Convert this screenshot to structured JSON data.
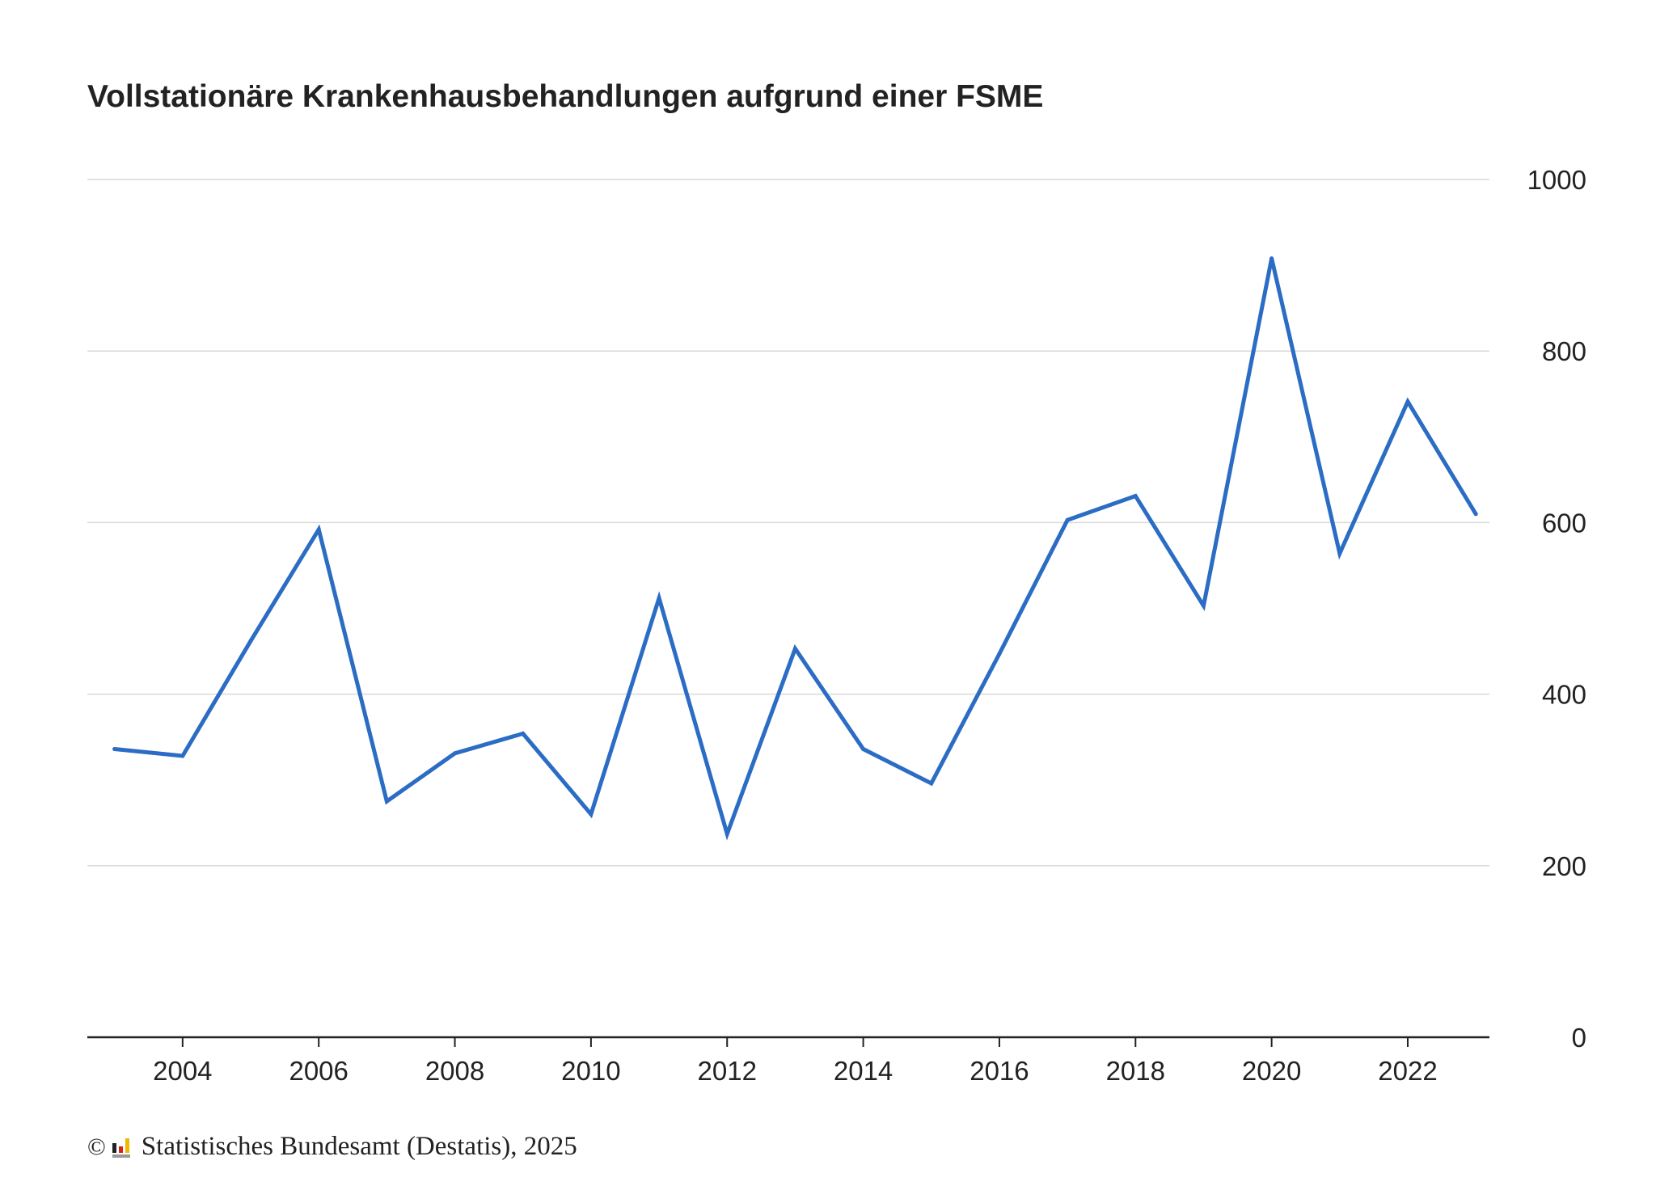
{
  "title": "Vollstationäre Krankenhausbehandlungen aufgrund einer FSME",
  "source": {
    "copyright": "©",
    "logo_icon": "destatis-logo-icon",
    "text": "Statistisches Bundesamt (Destatis), 2025"
  },
  "colors": {
    "line": "#2b6cc4",
    "grid": "#d9d9d9",
    "axis": "#222222",
    "text": "#222222",
    "logo_black": "#222222",
    "logo_red": "#d42020",
    "logo_gold": "#f2b705",
    "logo_grey": "#9a9a9a"
  },
  "chart_data": {
    "type": "line",
    "title": "Vollstationäre Krankenhausbehandlungen aufgrund einer FSME",
    "xlabel": "",
    "ylabel": "",
    "x": [
      2003,
      2004,
      2005,
      2006,
      2007,
      2008,
      2009,
      2010,
      2011,
      2012,
      2013,
      2014,
      2015,
      2016,
      2017,
      2018,
      2019,
      2020,
      2021,
      2022,
      2023
    ],
    "series": [
      {
        "values": [
          336,
          328,
          462,
          592,
          275,
          331,
          354,
          260,
          512,
          237,
          453,
          336,
          296,
          447,
          603,
          631,
          503,
          908,
          564,
          741,
          610
        ]
      }
    ],
    "x_ticks": [
      "2004",
      "2006",
      "2008",
      "2010",
      "2012",
      "2014",
      "2016",
      "2018",
      "2020",
      "2022"
    ],
    "y_ticks": [
      "0",
      "200",
      "400",
      "600",
      "800",
      "1000"
    ],
    "xlim": [
      2002.6,
      2023.2
    ],
    "ylim": [
      0,
      1000
    ],
    "y_axis_side": "right",
    "grid": "horizontal",
    "legend": "none"
  }
}
